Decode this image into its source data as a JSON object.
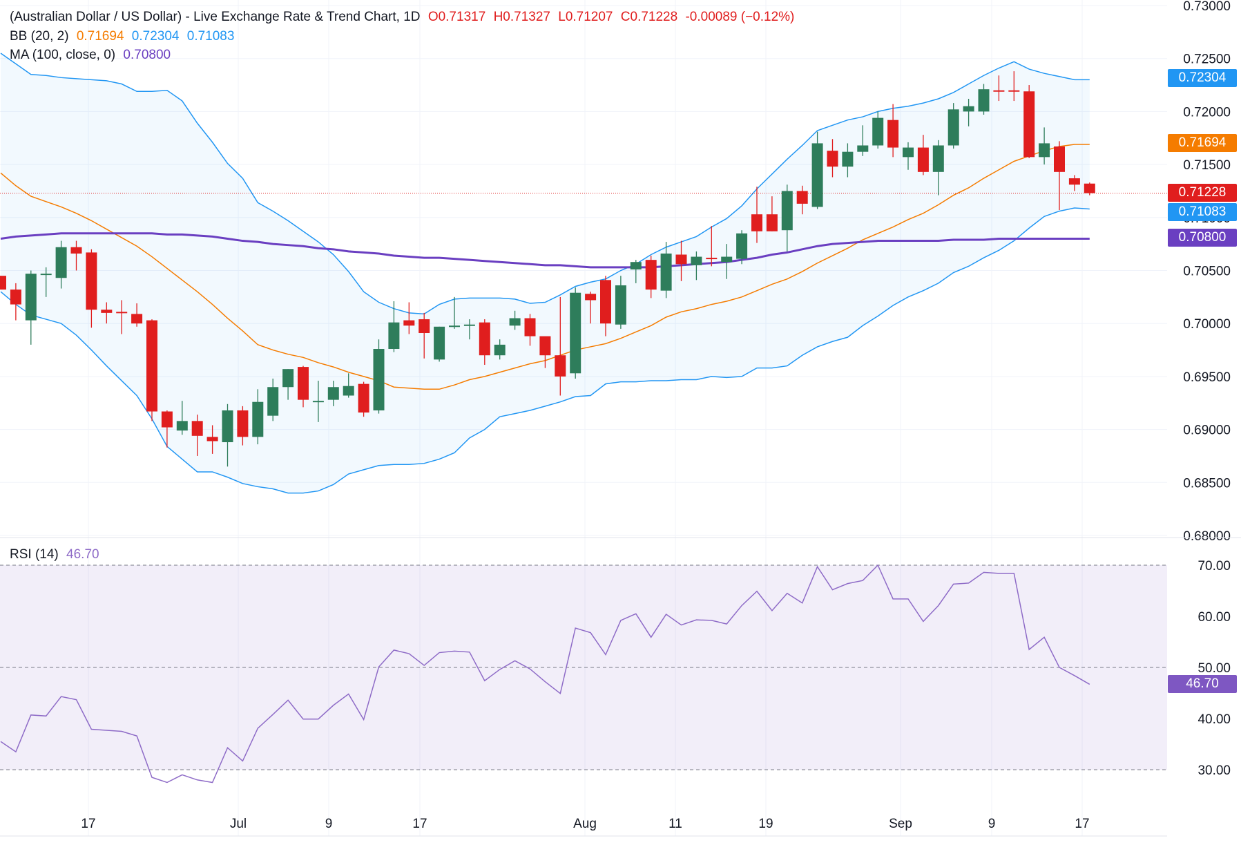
{
  "header": {
    "title": "(Australian Dollar / US Dollar) - Live Exchange Rate & Trend Chart, 1D",
    "open": "O0.71317",
    "high": "H0.71327",
    "low": "L0.71207",
    "close": "C0.71228",
    "change": "-0.00089 (−0.12%)"
  },
  "bb": {
    "label": "BB (20, 2)",
    "mid": "0.71694",
    "upper": "0.72304",
    "lower": "0.71083"
  },
  "ma": {
    "label": "MA (100, close, 0)",
    "value": "0.70800"
  },
  "rsi": {
    "label": "RSI (14)",
    "value": "46.70"
  },
  "price_labels": {
    "upper": "0.72304",
    "mid": "0.71694",
    "last": "0.71228",
    "lower": "0.71083",
    "ma": "0.70800",
    "rsi": "46.70"
  },
  "colors": {
    "up": "#2e7d5b",
    "down": "#e01e1e",
    "bb_band": "#2196f3",
    "bb_mid": "#f57c00",
    "ma": "#6a3fc1",
    "rsi": "#8e6bc7",
    "last": "#e01e1e"
  },
  "chart_data": [
    {
      "type": "candlestick",
      "title": "(Australian Dollar / US Dollar) - Live Exchange Rate & Trend Chart, 1D",
      "ylim": [
        0.68,
        0.73
      ],
      "yticks": [
        "0.73000",
        "0.72500",
        "0.72000",
        "0.71500",
        "0.71000",
        "0.70500",
        "0.70000",
        "0.69500",
        "0.69000",
        "0.68500",
        "0.68000"
      ],
      "xticks": [
        "17",
        "Jul",
        "9",
        "17",
        "Aug",
        "11",
        "19",
        "Sep",
        "9",
        "17"
      ],
      "candles": [
        [
          0.7045,
          0.7045,
          0.7034,
          0.7032
        ],
        [
          0.7032,
          0.7038,
          0.7003,
          0.7018
        ],
        [
          0.7003,
          0.705,
          0.698,
          0.7047
        ],
        [
          0.7047,
          0.7053,
          0.7025,
          0.7047
        ],
        [
          0.7043,
          0.7078,
          0.7033,
          0.7072
        ],
        [
          0.7072,
          0.7078,
          0.705,
          0.7066
        ],
        [
          0.7067,
          0.707,
          0.6996,
          0.7013
        ],
        [
          0.7013,
          0.702,
          0.7,
          0.701
        ],
        [
          0.7011,
          0.7022,
          0.699,
          0.701
        ],
        [
          0.7009,
          0.7019,
          0.6997,
          0.7
        ],
        [
          0.7003,
          0.7004,
          0.6908,
          0.6917
        ],
        [
          0.6917,
          0.6918,
          0.6883,
          0.6902
        ],
        [
          0.6899,
          0.6927,
          0.6895,
          0.6908
        ],
        [
          0.6908,
          0.6914,
          0.6875,
          0.6894
        ],
        [
          0.6893,
          0.6904,
          0.6877,
          0.6889
        ],
        [
          0.6888,
          0.6924,
          0.6865,
          0.6918
        ],
        [
          0.6918,
          0.6922,
          0.6885,
          0.6893
        ],
        [
          0.6893,
          0.6938,
          0.6886,
          0.6926
        ],
        [
          0.6913,
          0.6948,
          0.6908,
          0.694
        ],
        [
          0.694,
          0.6957,
          0.6928,
          0.6957
        ],
        [
          0.6959,
          0.696,
          0.6921,
          0.6928
        ],
        [
          0.6927,
          0.6946,
          0.6907,
          0.6927
        ],
        [
          0.6928,
          0.6946,
          0.6922,
          0.694
        ],
        [
          0.6932,
          0.6953,
          0.693,
          0.6941
        ],
        [
          0.6943,
          0.6945,
          0.6912,
          0.6916
        ],
        [
          0.6918,
          0.6985,
          0.6915,
          0.6976
        ],
        [
          0.6976,
          0.7021,
          0.6973,
          0.7001
        ],
        [
          0.7003,
          0.702,
          0.699,
          0.6998
        ],
        [
          0.7004,
          0.701,
          0.6967,
          0.6991
        ],
        [
          0.6966,
          0.6997,
          0.6964,
          0.6997
        ],
        [
          0.6997,
          0.7025,
          0.6995,
          0.6998
        ],
        [
          0.6999,
          0.7004,
          0.6985,
          0.6999
        ],
        [
          0.7001,
          0.7004,
          0.6961,
          0.697
        ],
        [
          0.697,
          0.6985,
          0.6966,
          0.698
        ],
        [
          0.6998,
          0.7012,
          0.6994,
          0.7005
        ],
        [
          0.7005,
          0.7009,
          0.6979,
          0.6988
        ],
        [
          0.6988,
          0.6986,
          0.6958,
          0.697
        ],
        [
          0.697,
          0.7025,
          0.6932,
          0.695
        ],
        [
          0.6953,
          0.7034,
          0.6948,
          0.7029
        ],
        [
          0.7028,
          0.703,
          0.7,
          0.7022
        ],
        [
          0.7041,
          0.7045,
          0.6988,
          0.7
        ],
        [
          0.6999,
          0.7045,
          0.6995,
          0.7036
        ],
        [
          0.7051,
          0.706,
          0.7038,
          0.7058
        ],
        [
          0.706,
          0.7064,
          0.7024,
          0.7032
        ],
        [
          0.7031,
          0.7077,
          0.7024,
          0.7066
        ],
        [
          0.7065,
          0.7078,
          0.704,
          0.7056
        ],
        [
          0.7055,
          0.7068,
          0.7041,
          0.7063
        ],
        [
          0.7062,
          0.7092,
          0.7054,
          0.7061
        ],
        [
          0.7058,
          0.7075,
          0.7042,
          0.7063
        ],
        [
          0.7061,
          0.7088,
          0.7056,
          0.7085
        ],
        [
          0.7103,
          0.7129,
          0.7076,
          0.7087
        ],
        [
          0.7103,
          0.712,
          0.7087,
          0.7087
        ],
        [
          0.7088,
          0.7131,
          0.7068,
          0.7125
        ],
        [
          0.7125,
          0.713,
          0.7103,
          0.7113
        ],
        [
          0.711,
          0.7181,
          0.7108,
          0.717
        ],
        [
          0.7163,
          0.7174,
          0.7138,
          0.7148
        ],
        [
          0.7148,
          0.717,
          0.7138,
          0.7162
        ],
        [
          0.7162,
          0.7187,
          0.7158,
          0.7168
        ],
        [
          0.7168,
          0.72,
          0.7165,
          0.7194
        ],
        [
          0.7192,
          0.7207,
          0.7157,
          0.7166
        ],
        [
          0.7157,
          0.7171,
          0.7145,
          0.7166
        ],
        [
          0.7166,
          0.7178,
          0.714,
          0.7143
        ],
        [
          0.7143,
          0.7173,
          0.7121,
          0.7168
        ],
        [
          0.7168,
          0.7208,
          0.7165,
          0.7202
        ],
        [
          0.72,
          0.7212,
          0.7186,
          0.7205
        ],
        [
          0.72,
          0.7226,
          0.7197,
          0.7221
        ],
        [
          0.722,
          0.7234,
          0.721,
          0.7219
        ],
        [
          0.722,
          0.7238,
          0.721,
          0.7219
        ],
        [
          0.7219,
          0.7225,
          0.7156,
          0.7157
        ],
        [
          0.7157,
          0.7185,
          0.715,
          0.717
        ],
        [
          0.7167,
          0.7172,
          0.7107,
          0.7143
        ],
        [
          0.7137,
          0.714,
          0.7125,
          0.7131
        ],
        [
          0.7132,
          0.7133,
          0.7121,
          0.7123
        ]
      ],
      "bb_upper": [
        0.7255,
        0.7245,
        0.7235,
        0.7234,
        0.7232,
        0.7231,
        0.723,
        0.7229,
        0.7226,
        0.7219,
        0.7219,
        0.722,
        0.721,
        0.7189,
        0.7171,
        0.7151,
        0.7137,
        0.7114,
        0.7106,
        0.7097,
        0.7087,
        0.7077,
        0.7065,
        0.7049,
        0.703,
        0.702,
        0.7014,
        0.701,
        0.7009,
        0.7018,
        0.7023,
        0.7024,
        0.7024,
        0.7024,
        0.7023,
        0.7019,
        0.702,
        0.7027,
        0.7035,
        0.7039,
        0.7042,
        0.705,
        0.7056,
        0.7065,
        0.7072,
        0.7077,
        0.7082,
        0.7091,
        0.7099,
        0.7111,
        0.7127,
        0.7141,
        0.7155,
        0.7168,
        0.7182,
        0.7187,
        0.7192,
        0.7195,
        0.72,
        0.7203,
        0.7205,
        0.7208,
        0.7212,
        0.7218,
        0.7226,
        0.7234,
        0.7241,
        0.7247,
        0.724,
        0.7236,
        0.7233,
        0.723,
        0.723
      ],
      "bb_mid": [
        0.7142,
        0.713,
        0.712,
        0.7115,
        0.711,
        0.7104,
        0.7097,
        0.7089,
        0.7081,
        0.7073,
        0.7063,
        0.7052,
        0.7041,
        0.703,
        0.7018,
        0.7005,
        0.6993,
        0.698,
        0.6975,
        0.6971,
        0.6968,
        0.6963,
        0.6959,
        0.6954,
        0.695,
        0.6946,
        0.694,
        0.6939,
        0.6938,
        0.6938,
        0.6942,
        0.6947,
        0.695,
        0.6954,
        0.6958,
        0.6962,
        0.6965,
        0.697,
        0.6975,
        0.6978,
        0.6981,
        0.6986,
        0.6992,
        0.6998,
        0.7006,
        0.7011,
        0.7014,
        0.7018,
        0.7021,
        0.7025,
        0.7031,
        0.7037,
        0.7042,
        0.7049,
        0.7057,
        0.7064,
        0.7071,
        0.7079,
        0.7085,
        0.7091,
        0.7098,
        0.7104,
        0.7112,
        0.7121,
        0.7128,
        0.7137,
        0.7145,
        0.7153,
        0.7158,
        0.7163,
        0.7167,
        0.7169,
        0.7169
      ],
      "bb_lower": [
        0.703,
        0.7018,
        0.7008,
        0.7004,
        0.7,
        0.6989,
        0.6975,
        0.696,
        0.6946,
        0.6932,
        0.691,
        0.6884,
        0.6872,
        0.686,
        0.686,
        0.6855,
        0.6849,
        0.6846,
        0.6844,
        0.684,
        0.684,
        0.6842,
        0.6848,
        0.6858,
        0.6862,
        0.6866,
        0.6867,
        0.6867,
        0.6868,
        0.6872,
        0.6878,
        0.6892,
        0.69,
        0.6912,
        0.6915,
        0.6918,
        0.6922,
        0.6926,
        0.6931,
        0.6932,
        0.6943,
        0.6945,
        0.6945,
        0.6946,
        0.6946,
        0.6947,
        0.6947,
        0.695,
        0.6949,
        0.695,
        0.6958,
        0.6958,
        0.696,
        0.697,
        0.6978,
        0.6983,
        0.6987,
        0.6998,
        0.7007,
        0.7017,
        0.7025,
        0.7031,
        0.7038,
        0.7048,
        0.7054,
        0.7062,
        0.7069,
        0.7078,
        0.709,
        0.7101,
        0.7106,
        0.7109,
        0.7108
      ],
      "ma100": [
        0.708,
        0.7082,
        0.7083,
        0.7084,
        0.7085,
        0.7085,
        0.7085,
        0.7085,
        0.7085,
        0.7085,
        0.7085,
        0.7084,
        0.7084,
        0.7083,
        0.7082,
        0.708,
        0.7078,
        0.7077,
        0.7075,
        0.7074,
        0.7073,
        0.7071,
        0.707,
        0.7068,
        0.7067,
        0.7066,
        0.7064,
        0.7063,
        0.7062,
        0.7062,
        0.7061,
        0.706,
        0.7059,
        0.7058,
        0.7057,
        0.7056,
        0.7055,
        0.7055,
        0.7054,
        0.7053,
        0.7053,
        0.7053,
        0.7053,
        0.7053,
        0.7054,
        0.7055,
        0.7056,
        0.7057,
        0.7058,
        0.706,
        0.7062,
        0.7065,
        0.7067,
        0.707,
        0.7073,
        0.7075,
        0.7076,
        0.7077,
        0.7078,
        0.7078,
        0.7078,
        0.7078,
        0.7078,
        0.7079,
        0.7079,
        0.7079,
        0.708,
        0.708,
        0.708,
        0.708,
        0.708,
        0.708,
        0.708
      ]
    },
    {
      "type": "line",
      "title": "RSI (14)",
      "ylim": [
        25,
        72
      ],
      "yticks": [
        "70.00",
        "60.00",
        "50.00",
        "40.00",
        "30.00"
      ],
      "levels": [
        70,
        50,
        30
      ],
      "values": [
        35.5,
        33.5,
        40.7,
        40.5,
        44.3,
        43.7,
        37.9,
        37.7,
        37.5,
        36.6,
        28.5,
        27.5,
        29.0,
        28.0,
        27.5,
        34.3,
        31.7,
        38.1,
        40.8,
        43.6,
        39.9,
        39.9,
        42.6,
        44.8,
        39.8,
        50.1,
        53.4,
        52.7,
        50.4,
        52.9,
        53.2,
        53.0,
        47.4,
        49.6,
        51.3,
        49.7,
        47.2,
        44.9,
        57.7,
        56.8,
        52.5,
        59.2,
        60.5,
        55.9,
        60.4,
        58.3,
        59.3,
        59.2,
        58.5,
        62.1,
        64.9,
        61.1,
        64.5,
        62.6,
        69.7,
        65.2,
        66.4,
        67.0,
        70.0,
        63.4,
        63.4,
        59.0,
        62.1,
        66.3,
        66.5,
        68.6,
        68.4,
        68.4,
        53.5,
        55.9,
        50.0,
        48.4,
        46.7
      ]
    }
  ]
}
